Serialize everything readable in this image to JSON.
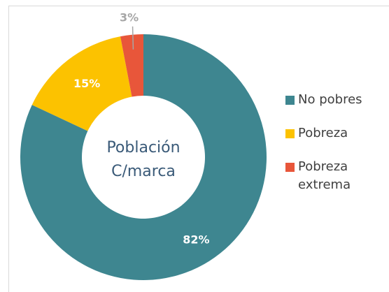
{
  "chart_data": {
    "type": "donut",
    "center_label": [
      "Población",
      "C/marca"
    ],
    "series": [
      {
        "name": "No pobres",
        "color": "#3e8690",
        "values": [
          82
        ],
        "value_labels": [
          "82%"
        ]
      },
      {
        "name": "Pobreza",
        "color": "#fcc200",
        "values": [
          15
        ],
        "value_labels": [
          "15%"
        ]
      },
      {
        "name": "Pobreza extrema",
        "color": "#e8563a",
        "values": [
          3
        ],
        "value_labels": [
          "3%"
        ]
      }
    ],
    "legend": "right"
  }
}
